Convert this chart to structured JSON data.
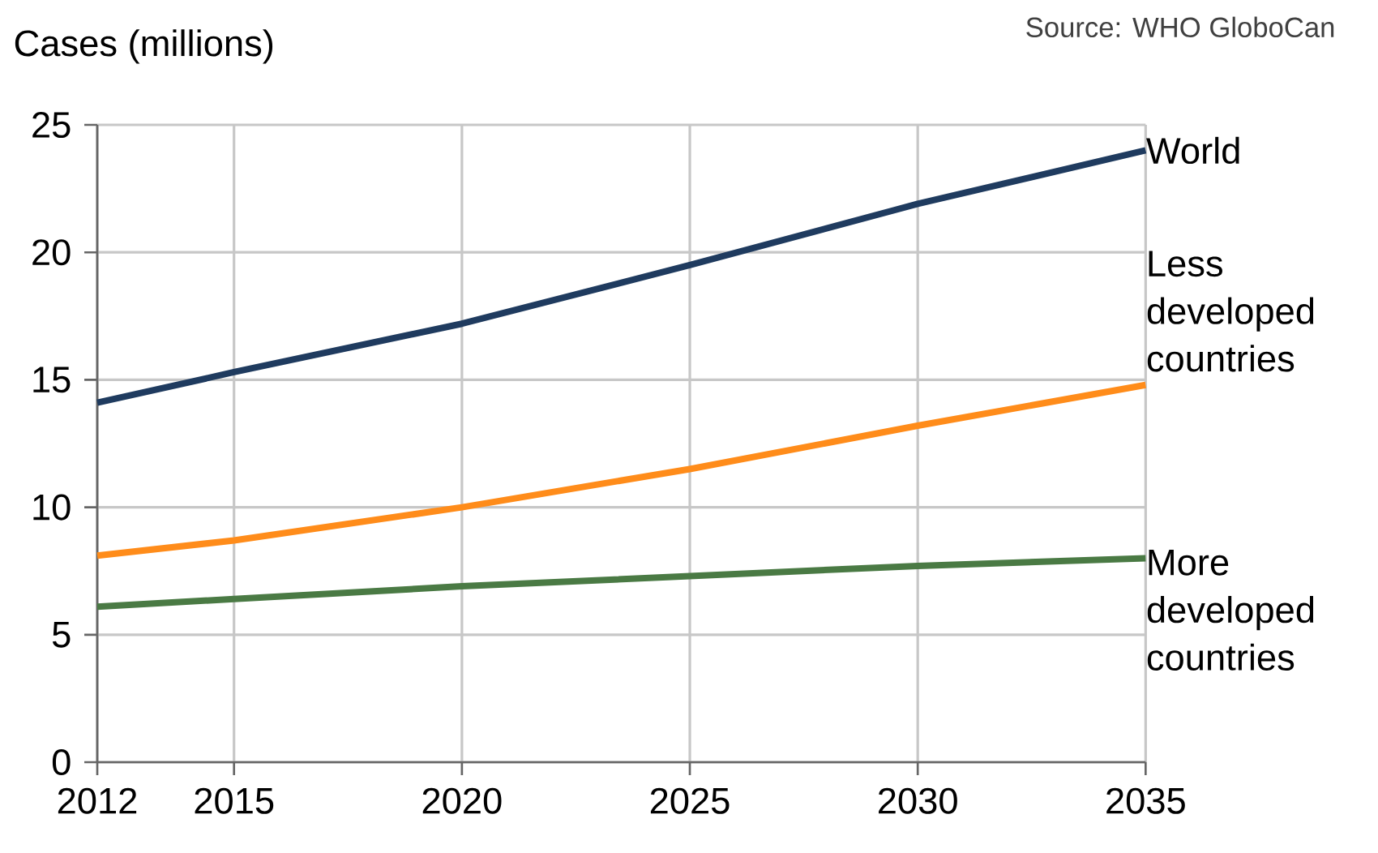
{
  "chart_data": {
    "type": "line",
    "ylabel": "Cases (millions)",
    "annotations": [
      "Source: WHO GloboCan"
    ],
    "x": [
      2012,
      2015,
      2020,
      2025,
      2030,
      2035
    ],
    "series": [
      {
        "name": "World",
        "color": "#1f3b5f",
        "values": [
          14.1,
          15.3,
          17.2,
          19.5,
          21.9,
          24.0
        ]
      },
      {
        "name": "Less developed countries",
        "color": "#ff8c1a",
        "values": [
          8.1,
          8.7,
          10.0,
          11.5,
          13.2,
          14.8
        ]
      },
      {
        "name": "More developed countries",
        "color": "#4a7a44",
        "values": [
          6.1,
          6.4,
          6.9,
          7.3,
          7.7,
          8.0
        ]
      }
    ],
    "xlim": [
      2012,
      2035
    ],
    "ylim": [
      0,
      25
    ],
    "xticks": [
      2012,
      2015,
      2020,
      2025,
      2030,
      2035
    ],
    "yticks": [
      0,
      5,
      10,
      15,
      20,
      25
    ],
    "grid": true,
    "marker": "none",
    "line_style": "solid"
  }
}
